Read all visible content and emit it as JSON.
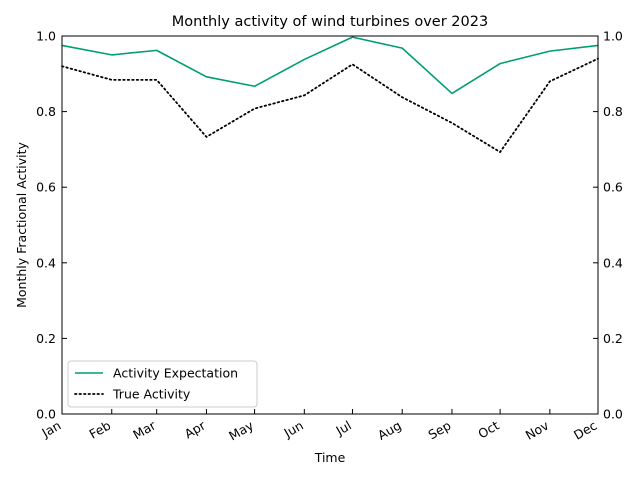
{
  "chart_data": {
    "type": "line",
    "title": "Monthly activity of wind turbines over 2023",
    "xlabel": "Time",
    "ylabel": "Monthly Fractional Activity",
    "ylim": [
      0,
      1
    ],
    "yticks": [
      "0.0",
      "0.2",
      "0.4",
      "0.6",
      "0.8",
      "1.0"
    ],
    "right_axis_ticks": [
      "0.0",
      "0.2",
      "0.4",
      "0.6",
      "0.8",
      "1.0"
    ],
    "categories": [
      "Jan",
      "Feb",
      "Mar",
      "Apr",
      "May",
      "Jun",
      "Jul",
      "Aug",
      "Sep",
      "Oct",
      "Nov",
      "Dec"
    ],
    "x_days": [
      0,
      31,
      59,
      90,
      120,
      151,
      181,
      212,
      243,
      273,
      304,
      334
    ],
    "series": [
      {
        "name": "Activity Expectation",
        "style": "solid",
        "color": "#009E73",
        "values": [
          0.975,
          0.95,
          0.962,
          0.892,
          0.867,
          0.938,
          0.997,
          0.968,
          0.848,
          0.927,
          0.96,
          0.975
        ]
      },
      {
        "name": "True Activity",
        "style": "dotted",
        "color": "#000000",
        "values": [
          0.92,
          0.884,
          0.884,
          0.733,
          0.808,
          0.843,
          0.925,
          0.838,
          0.77,
          0.693,
          0.88,
          0.94
        ]
      }
    ],
    "legend": {
      "position": "lower-left"
    },
    "grid": false
  }
}
